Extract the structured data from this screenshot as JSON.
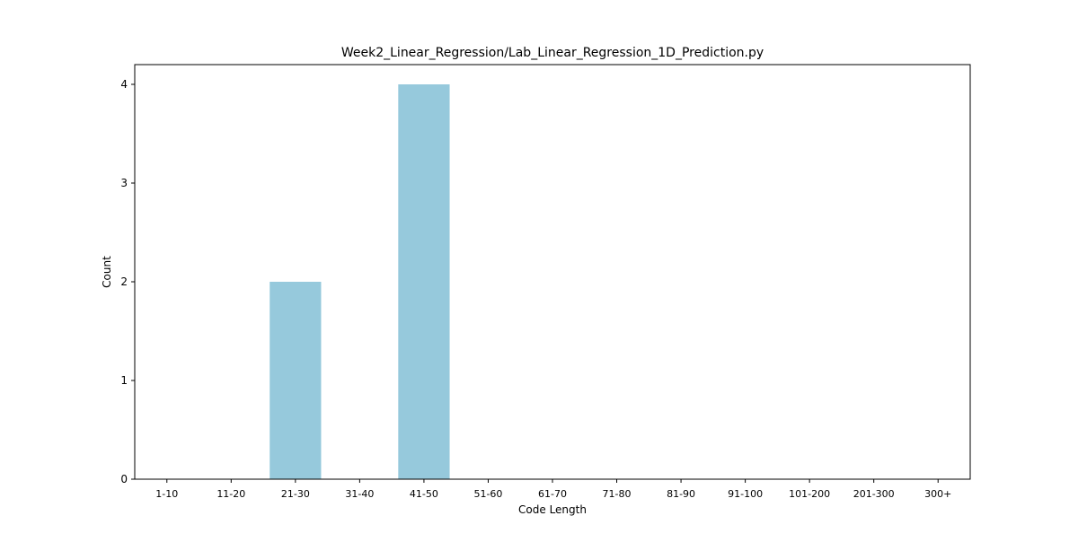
{
  "chart_data": {
    "type": "bar",
    "title": "Week2_Linear_Regression/Lab_Linear_Regression_1D_Prediction.py",
    "xlabel": "Code Length",
    "ylabel": "Count",
    "categories": [
      "1-10",
      "11-20",
      "21-30",
      "31-40",
      "41-50",
      "51-60",
      "61-70",
      "71-80",
      "81-90",
      "91-100",
      "101-200",
      "201-300",
      "300+"
    ],
    "values": [
      0,
      0,
      2,
      0,
      4,
      0,
      0,
      0,
      0,
      0,
      0,
      0,
      0
    ],
    "ylim": [
      0,
      4.2
    ],
    "yticks": [
      0,
      1,
      2,
      3,
      4
    ],
    "bar_color": "#96c9dc",
    "grid": false,
    "legend": "none"
  }
}
